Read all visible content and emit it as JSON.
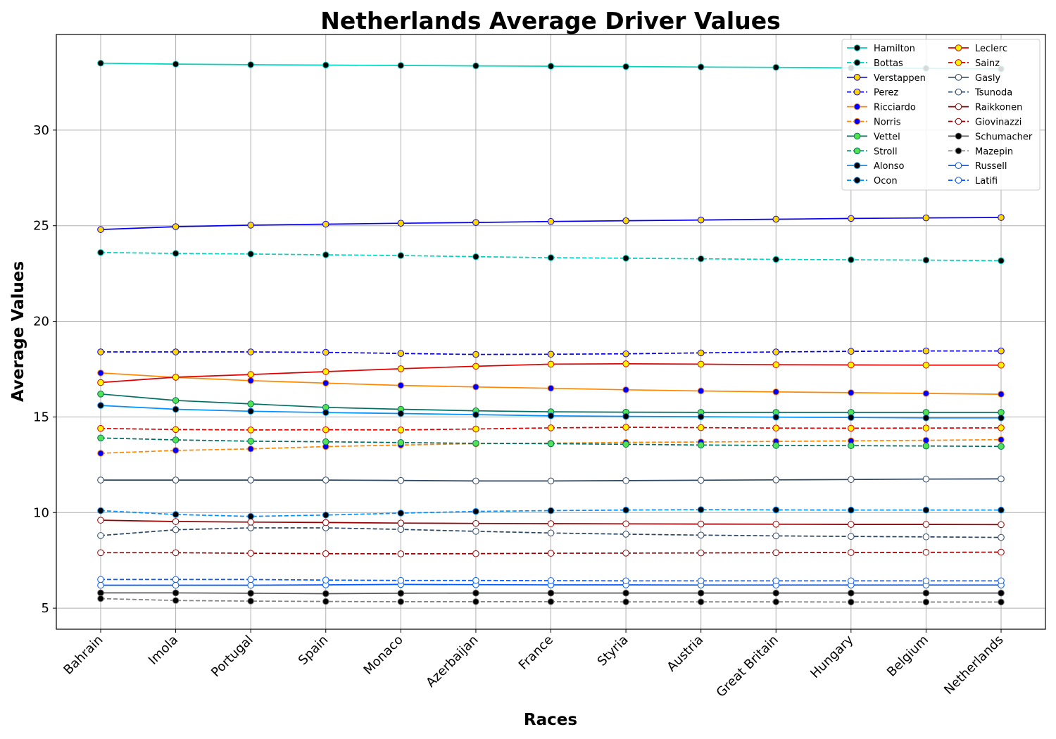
{
  "chart_data": {
    "type": "line",
    "title": "Netherlands Average Driver Values",
    "xlabel": "Races",
    "ylabel": "Average Values",
    "categories": [
      "Bahrain",
      "Imola",
      "Portugal",
      "Spain",
      "Monaco",
      "Azerbaijan",
      "France",
      "Styria",
      "Austria",
      "Great Britain",
      "Hungary",
      "Belgium",
      "Netherlands"
    ],
    "ylim": [
      3.9,
      35.0
    ],
    "yticks": [
      5,
      10,
      15,
      20,
      25,
      30
    ],
    "grid": true,
    "legend_position": "top-right",
    "legend_columns": 2,
    "series": [
      {
        "name": "Hamilton",
        "color": "#00d2be",
        "dash": "solid",
        "marker_fill": "#000000",
        "values": [
          33.5,
          33.45,
          33.42,
          33.4,
          33.38,
          33.36,
          33.34,
          33.32,
          33.3,
          33.28,
          33.25,
          33.23,
          33.2
        ]
      },
      {
        "name": "Bottas",
        "color": "#00d2be",
        "dash": "dashed",
        "marker_fill": "#000000",
        "values": [
          23.6,
          23.55,
          23.52,
          23.48,
          23.44,
          23.38,
          23.33,
          23.3,
          23.27,
          23.24,
          23.22,
          23.2,
          23.17
        ]
      },
      {
        "name": "Verstappen",
        "color": "#0600ef",
        "dash": "solid",
        "marker_fill": "#ffd700",
        "values": [
          24.8,
          24.95,
          25.03,
          25.08,
          25.13,
          25.17,
          25.22,
          25.26,
          25.3,
          25.34,
          25.38,
          25.41,
          25.43
        ]
      },
      {
        "name": "Perez",
        "color": "#0600ef",
        "dash": "dashed",
        "marker_fill": "#ffd700",
        "values": [
          18.4,
          18.4,
          18.4,
          18.38,
          18.32,
          18.27,
          18.28,
          18.3,
          18.35,
          18.4,
          18.43,
          18.45,
          18.45
        ]
      },
      {
        "name": "Ricciardo",
        "color": "#ff8700",
        "dash": "solid",
        "marker_fill": "#0000ff",
        "values": [
          17.3,
          17.07,
          16.9,
          16.77,
          16.65,
          16.57,
          16.5,
          16.42,
          16.36,
          16.31,
          16.27,
          16.23,
          16.19
        ]
      },
      {
        "name": "Norris",
        "color": "#ff8700",
        "dash": "dashed",
        "marker_fill": "#0000ff",
        "values": [
          13.1,
          13.25,
          13.33,
          13.45,
          13.53,
          13.6,
          13.63,
          13.67,
          13.69,
          13.72,
          13.75,
          13.78,
          13.81
        ]
      },
      {
        "name": "Vettel",
        "color": "#006f62",
        "dash": "solid",
        "marker_fill": "#52e252",
        "values": [
          16.2,
          15.86,
          15.68,
          15.5,
          15.4,
          15.32,
          15.27,
          15.25,
          15.24,
          15.24,
          15.24,
          15.24,
          15.24
        ]
      },
      {
        "name": "Stroll",
        "color": "#006f62",
        "dash": "dashed",
        "marker_fill": "#52e252",
        "values": [
          13.9,
          13.8,
          13.73,
          13.7,
          13.66,
          13.62,
          13.6,
          13.57,
          13.53,
          13.51,
          13.5,
          13.48,
          13.46
        ]
      },
      {
        "name": "Alonso",
        "color": "#0090ff",
        "dash": "solid",
        "marker_fill": "#000000",
        "values": [
          15.6,
          15.4,
          15.3,
          15.23,
          15.18,
          15.12,
          15.06,
          15.03,
          15.01,
          14.99,
          14.97,
          14.95,
          14.95
        ]
      },
      {
        "name": "Ocon",
        "color": "#0090ff",
        "dash": "dashed",
        "marker_fill": "#000000",
        "values": [
          10.1,
          9.9,
          9.8,
          9.87,
          9.97,
          10.06,
          10.1,
          10.13,
          10.15,
          10.14,
          10.13,
          10.13,
          10.13
        ]
      },
      {
        "name": "Leclerc",
        "color": "#dc0000",
        "dash": "solid",
        "marker_fill": "#fff500",
        "values": [
          16.8,
          17.08,
          17.22,
          17.37,
          17.52,
          17.65,
          17.76,
          17.78,
          17.76,
          17.73,
          17.72,
          17.71,
          17.71
        ]
      },
      {
        "name": "Sainz",
        "color": "#dc0000",
        "dash": "dashed",
        "marker_fill": "#fff500",
        "values": [
          14.4,
          14.34,
          14.32,
          14.33,
          14.32,
          14.37,
          14.43,
          14.46,
          14.44,
          14.42,
          14.41,
          14.42,
          14.43
        ]
      },
      {
        "name": "Gasly",
        "color": "#2b4562",
        "dash": "solid",
        "marker_fill": "#ffffff",
        "values": [
          11.7,
          11.7,
          11.7,
          11.7,
          11.68,
          11.65,
          11.65,
          11.67,
          11.69,
          11.71,
          11.73,
          11.75,
          11.76
        ]
      },
      {
        "name": "Tsunoda",
        "color": "#2b4562",
        "dash": "dashed",
        "marker_fill": "#ffffff",
        "values": [
          8.8,
          9.1,
          9.2,
          9.2,
          9.12,
          9.02,
          8.93,
          8.87,
          8.82,
          8.78,
          8.75,
          8.73,
          8.7
        ]
      },
      {
        "name": "Raikkonen",
        "color": "#960000",
        "dash": "solid",
        "marker_fill": "#ffffff",
        "values": [
          9.6,
          9.53,
          9.5,
          9.48,
          9.45,
          9.43,
          9.42,
          9.41,
          9.4,
          9.39,
          9.38,
          9.38,
          9.37
        ]
      },
      {
        "name": "Giovinazzi",
        "color": "#960000",
        "dash": "dashed",
        "marker_fill": "#ffffff",
        "values": [
          7.9,
          7.9,
          7.87,
          7.85,
          7.84,
          7.85,
          7.87,
          7.88,
          7.89,
          7.9,
          7.91,
          7.92,
          7.93
        ]
      },
      {
        "name": "Schumacher",
        "color": "#5a5a5a",
        "dash": "solid",
        "marker_fill": "#000000",
        "values": [
          5.8,
          5.8,
          5.78,
          5.76,
          5.78,
          5.79,
          5.79,
          5.79,
          5.79,
          5.79,
          5.79,
          5.79,
          5.79
        ]
      },
      {
        "name": "Mazepin",
        "color": "#808080",
        "dash": "dashed",
        "marker_fill": "#000000",
        "values": [
          5.5,
          5.4,
          5.37,
          5.35,
          5.34,
          5.34,
          5.34,
          5.33,
          5.33,
          5.33,
          5.32,
          5.32,
          5.32
        ]
      },
      {
        "name": "Russell",
        "color": "#005aff",
        "dash": "solid",
        "marker_fill": "#ffffff",
        "values": [
          6.2,
          6.2,
          6.2,
          6.22,
          6.24,
          6.23,
          6.22,
          6.22,
          6.21,
          6.21,
          6.21,
          6.21,
          6.21
        ]
      },
      {
        "name": "Latifi",
        "color": "#005aff",
        "dash": "dashed",
        "marker_fill": "#ffffff",
        "values": [
          6.5,
          6.5,
          6.5,
          6.47,
          6.45,
          6.45,
          6.44,
          6.43,
          6.43,
          6.43,
          6.43,
          6.43,
          6.43
        ]
      }
    ]
  }
}
